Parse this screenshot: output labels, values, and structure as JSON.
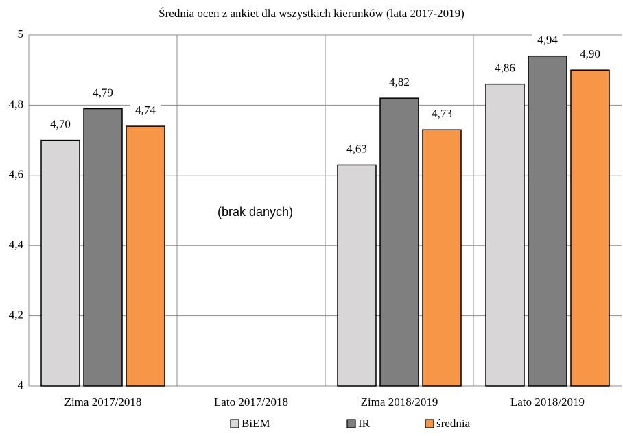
{
  "chart_data": {
    "type": "bar",
    "title": "Średnia ocen z ankiet dla wszystkich kierunków (lata 2017-2019)",
    "annotation": "(brak danych)",
    "categories": [
      "Zima 2017/2018",
      "Lato 2017/2018",
      "Zima 2018/2019",
      "Lato 2018/2019"
    ],
    "series": [
      {
        "name": "BiEM",
        "color": "#d9d6d8",
        "values": [
          4.7,
          null,
          4.63,
          4.86
        ],
        "value_labels": [
          "4,70",
          null,
          "4,63",
          "4,86"
        ]
      },
      {
        "name": "IR",
        "color": "#7f7f7f",
        "values": [
          4.79,
          null,
          4.82,
          4.94
        ],
        "value_labels": [
          "4,79",
          null,
          "4,82",
          "4,94"
        ]
      },
      {
        "name": "średnia",
        "color": "#f79646",
        "values": [
          4.74,
          null,
          4.73,
          4.9
        ],
        "value_labels": [
          "4,74",
          null,
          "4,73",
          "4,90"
        ]
      }
    ],
    "ylim": [
      4,
      5
    ],
    "yticks": [
      4,
      {
        "value": 4.2,
        "label": "4,2"
      },
      {
        "value": 4.4,
        "label": "4,4"
      },
      {
        "value": 4.6,
        "label": "4,6"
      },
      {
        "value": 4.8,
        "label": "4,8"
      },
      5
    ],
    "grid": true,
    "legend": "bottom"
  }
}
